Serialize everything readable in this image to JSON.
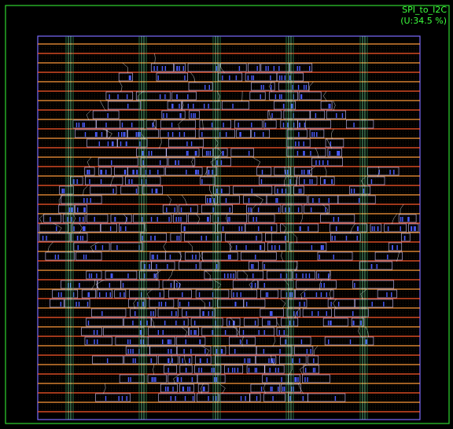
{
  "design": {
    "name": "SPI_to_I2C",
    "utilization_text": "(U:34.5 %)"
  },
  "colors": {
    "background": "#000000",
    "outer_boundary": "#2fd52f",
    "core_boundary": "#7c6cff",
    "power_rail": "#ff5a2a",
    "power_rail_alt": "#ff9a3a",
    "stripe": "#7dffb0",
    "cell_outline": "#c9c2ff",
    "pin": "#4a5cff",
    "wire": "#e8e8e8",
    "label": "#3cff3c"
  },
  "layout": {
    "utilization_percent": 34.5
  }
}
